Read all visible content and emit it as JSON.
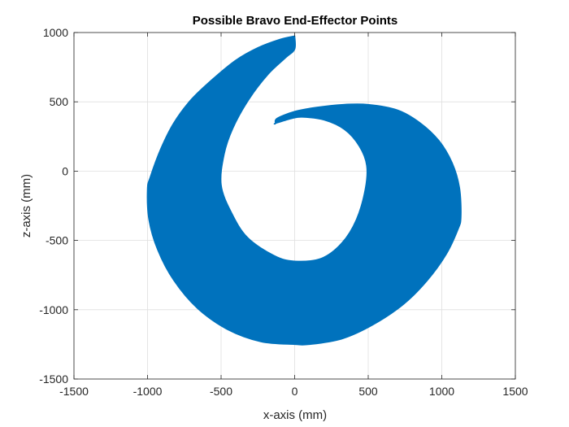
{
  "chart_data": {
    "type": "area",
    "title": "Possible Bravo End-Effector Points",
    "xlabel": "x-axis (mm)",
    "ylabel": "z-axis (mm)",
    "xlim": [
      -1500,
      1500
    ],
    "ylim": [
      -1500,
      1000
    ],
    "xticks": [
      -1500,
      -1000,
      -500,
      0,
      500,
      1000,
      1500
    ],
    "yticks": [
      -1500,
      -1000,
      -500,
      0,
      500,
      1000
    ],
    "xtick_labels": [
      "-1500",
      "-1000",
      "-500",
      "0",
      "500",
      "1000",
      "1500"
    ],
    "ytick_labels": [
      "-1500",
      "-1000",
      "-500",
      "0",
      "500",
      "1000"
    ],
    "grid": true,
    "fill_color": "#0072BD",
    "series": [
      {
        "outer_boundary": [
          [
            0,
            975
          ],
          [
            -100,
            950
          ],
          [
            -250,
            890
          ],
          [
            -400,
            800
          ],
          [
            -550,
            670
          ],
          [
            -700,
            520
          ],
          [
            -820,
            350
          ],
          [
            -910,
            160
          ],
          [
            -980,
            -40
          ],
          [
            -1000,
            -130
          ],
          [
            -990,
            -350
          ],
          [
            -930,
            -570
          ],
          [
            -820,
            -790
          ],
          [
            -660,
            -990
          ],
          [
            -460,
            -1140
          ],
          [
            -230,
            -1230
          ],
          [
            0,
            -1250
          ],
          [
            100,
            -1250
          ],
          [
            320,
            -1210
          ],
          [
            530,
            -1110
          ],
          [
            740,
            -960
          ],
          [
            900,
            -790
          ],
          [
            1030,
            -600
          ],
          [
            1110,
            -420
          ],
          [
            1130,
            -330
          ],
          [
            1120,
            -120
          ],
          [
            1070,
            60
          ],
          [
            980,
            220
          ],
          [
            850,
            350
          ],
          [
            700,
            440
          ],
          [
            500,
            480
          ],
          [
            330,
            480
          ],
          [
            150,
            460
          ],
          [
            0,
            430
          ],
          [
            -120,
            380
          ],
          [
            -130,
            345
          ]
        ],
        "inner_boundary": [
          [
            -130,
            345
          ],
          [
            -20,
            380
          ],
          [
            50,
            390
          ],
          [
            200,
            370
          ],
          [
            340,
            300
          ],
          [
            440,
            180
          ],
          [
            490,
            40
          ],
          [
            480,
            -130
          ],
          [
            420,
            -350
          ],
          [
            320,
            -520
          ],
          [
            180,
            -630
          ],
          [
            0,
            -650
          ],
          [
            -140,
            -610
          ],
          [
            -320,
            -480
          ],
          [
            -430,
            -300
          ],
          [
            -500,
            -100
          ],
          [
            -480,
            120
          ],
          [
            -420,
            310
          ],
          [
            -310,
            520
          ],
          [
            -180,
            700
          ],
          [
            -60,
            820
          ],
          [
            0,
            880
          ],
          [
            0,
            975
          ]
        ]
      }
    ]
  }
}
